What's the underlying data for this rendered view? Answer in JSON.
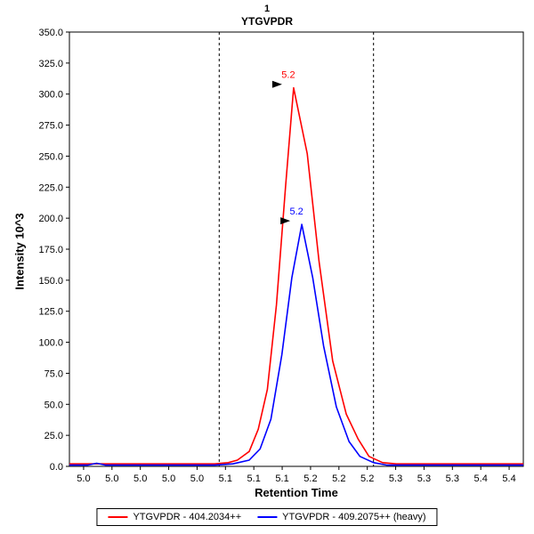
{
  "header": {
    "number": "1",
    "peptide": "YTGVPDR"
  },
  "colors": {
    "light": "#ff0000",
    "heavy": "#0000ff",
    "axis": "#000000",
    "marker": "#000000"
  },
  "chart_data": {
    "type": "line",
    "title": "1",
    "subtitle": "YTGVPDR",
    "xlabel": "Retention Time",
    "ylabel": "Intensity 10^3",
    "x_domain": [
      4.95,
      5.45
    ],
    "y_domain": [
      0,
      350
    ],
    "grid": false,
    "legend_position": "bottom",
    "y_tick_labels": [
      "0.0",
      "25.0",
      "50.0",
      "75.0",
      "100.0",
      "125.0",
      "150.0",
      "175.0",
      "200.0",
      "225.0",
      "250.0",
      "275.0",
      "300.0",
      "325.0",
      "350.0"
    ],
    "x_tick_labels": [
      "5.0",
      "5.0",
      "5.0",
      "5.0",
      "5.0",
      "5.1",
      "5.1",
      "5.1",
      "5.2",
      "5.2",
      "5.2",
      "5.3",
      "5.3",
      "5.3",
      "5.4",
      "5.4"
    ],
    "peak_boundaries": [
      5.115,
      5.285
    ],
    "series": [
      {
        "name": "YTGVPDR - 404.2034++",
        "color": "#ff0000",
        "x": [
          4.95,
          4.97,
          4.99,
          5.01,
          5.03,
          5.05,
          5.07,
          5.09,
          5.11,
          5.125,
          5.135,
          5.148,
          5.158,
          5.168,
          5.178,
          5.188,
          5.197,
          5.212,
          5.225,
          5.24,
          5.255,
          5.268,
          5.28,
          5.295,
          5.31,
          5.33,
          5.35,
          5.37,
          5.39,
          5.41,
          5.43,
          5.45
        ],
        "y": [
          2,
          2,
          2,
          2,
          2,
          2,
          2,
          2,
          2,
          3,
          5,
          12,
          30,
          62,
          130,
          225,
          305,
          252,
          165,
          85,
          42,
          22,
          8,
          3,
          2,
          2,
          2,
          2,
          2,
          2,
          2,
          2
        ]
      },
      {
        "name": "YTGVPDR - 409.2075++ (heavy)",
        "color": "#0000ff",
        "x": [
          4.95,
          4.97,
          4.98,
          4.99,
          5.01,
          5.03,
          5.05,
          5.07,
          5.09,
          5.11,
          5.13,
          5.148,
          5.16,
          5.172,
          5.184,
          5.195,
          5.206,
          5.218,
          5.23,
          5.244,
          5.258,
          5.27,
          5.285,
          5.3,
          5.33,
          5.36,
          5.39,
          5.42,
          5.45
        ],
        "y": [
          1,
          1,
          2.5,
          1,
          1,
          1,
          1,
          1,
          1,
          1,
          2,
          5,
          14,
          38,
          90,
          152,
          195,
          152,
          97,
          48,
          20,
          8,
          3,
          1,
          1,
          1,
          1,
          1,
          1
        ]
      }
    ],
    "annotations": [
      {
        "label": "5.2",
        "x": 5.197,
        "y": 305,
        "color": "#ff0000",
        "marker_color": "#000000"
      },
      {
        "label": "5.2",
        "x": 5.206,
        "y": 195,
        "color": "#0000ff",
        "marker_color": "#000000"
      }
    ],
    "legend": {
      "items": [
        {
          "label": "YTGVPDR - 404.2034++",
          "color": "#ff0000"
        },
        {
          "label": "YTGVPDR - 409.2075++ (heavy)",
          "color": "#0000ff"
        }
      ]
    }
  }
}
